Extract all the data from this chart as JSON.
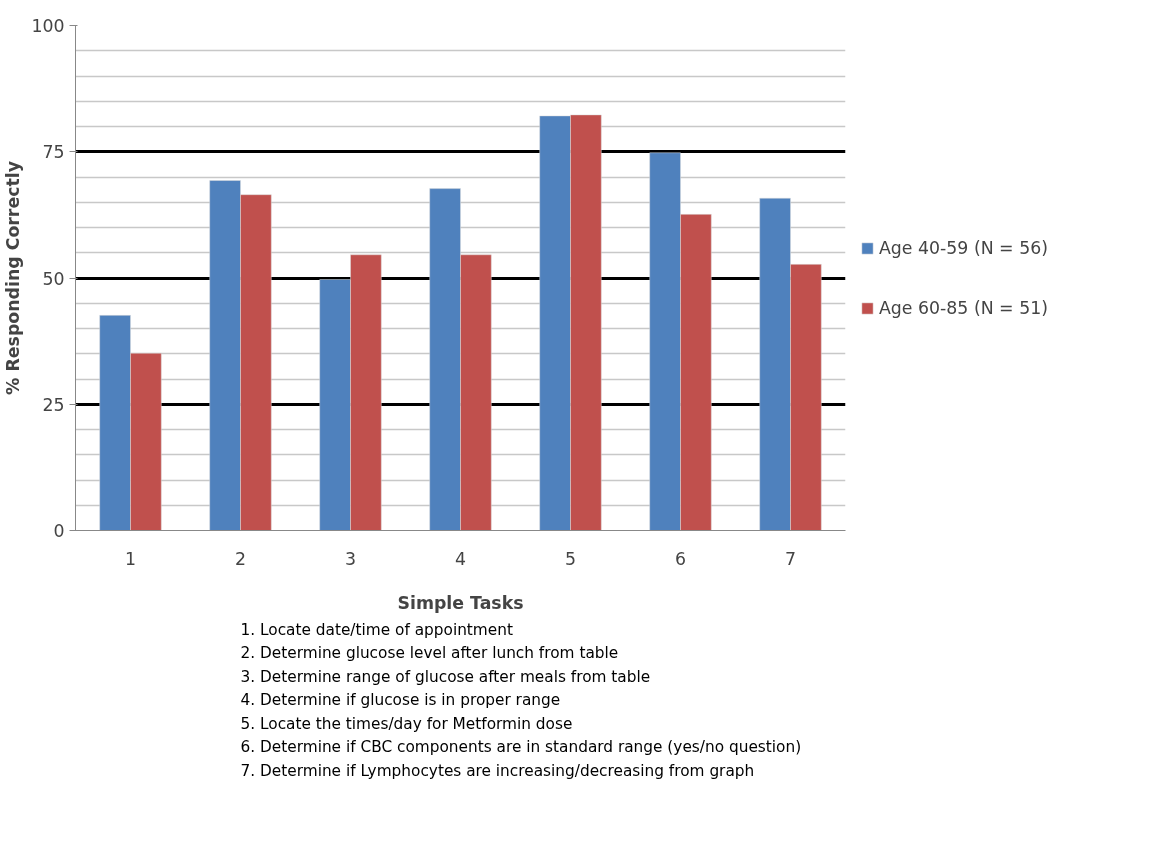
{
  "chart_data": {
    "type": "bar",
    "xlabel": "Simple Tasks",
    "ylabel": "% Responding Correctly",
    "categories": [
      "1",
      "2",
      "3",
      "4",
      "5",
      "6",
      "7"
    ],
    "series": [
      {
        "name": "Age 40-59 (N = 56)",
        "color": "#4f81bd",
        "values": [
          42.6,
          69.3,
          49.7,
          67.7,
          82.1,
          74.8,
          65.8
        ]
      },
      {
        "name": "Age 60-85 (N = 51)",
        "color": "#c0504d",
        "values": [
          35.1,
          66.5,
          54.6,
          54.6,
          82.3,
          62.6,
          52.7
        ]
      }
    ],
    "ylim": [
      0,
      100
    ],
    "yticks": [
      0,
      25,
      50,
      75,
      100
    ],
    "grid": "y",
    "legend": "right",
    "annotations": [
      "1. Locate date/time of appointment",
      "2. Determine glucose level after lunch from table",
      "3. Determine range of glucose after meals from table",
      "4. Determine if glucose is in proper range",
      "5. Locate the times/day for Metformin dose",
      "6. Determine if CBC components are in standard range (yes/no question)",
      "7. Determine if Lymphocytes are increasing/decreasing from graph"
    ]
  }
}
